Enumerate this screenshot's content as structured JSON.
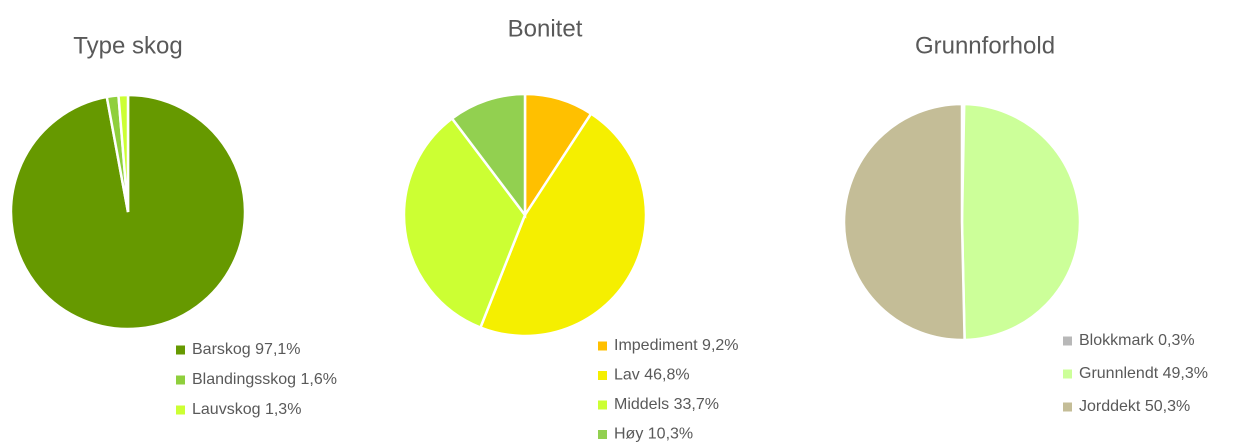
{
  "chart_data": [
    {
      "type": "pie",
      "title": "Type skog",
      "categories": [
        "Barskog",
        "Blandingsskog",
        "Lauvskog"
      ],
      "values": [
        97.1,
        1.6,
        1.3
      ],
      "value_labels": [
        "97,1%",
        "1,6%",
        "1,3%"
      ],
      "colors": [
        "#669900",
        "#8fcf3c",
        "#ccff33"
      ]
    },
    {
      "type": "pie",
      "title": "Bonitet",
      "categories": [
        "Impediment",
        "Lav",
        "Middels",
        "Høy"
      ],
      "values": [
        9.2,
        46.8,
        33.7,
        10.3
      ],
      "value_labels": [
        "9,2%",
        "46,8%",
        "33,7%",
        "10,3%"
      ],
      "colors": [
        "#ffc000",
        "#f5ef00",
        "#ccff33",
        "#92d050"
      ]
    },
    {
      "type": "pie",
      "title": "Grunnforhold",
      "categories": [
        "Blokkmark",
        "Grunnlendt",
        "Jorddekt"
      ],
      "values": [
        0.3,
        49.3,
        50.3
      ],
      "value_labels": [
        "0,3%",
        "49,3%",
        "50,3%"
      ],
      "colors": [
        "#b8b8b8",
        "#ccff99",
        "#c4bd97"
      ]
    }
  ]
}
